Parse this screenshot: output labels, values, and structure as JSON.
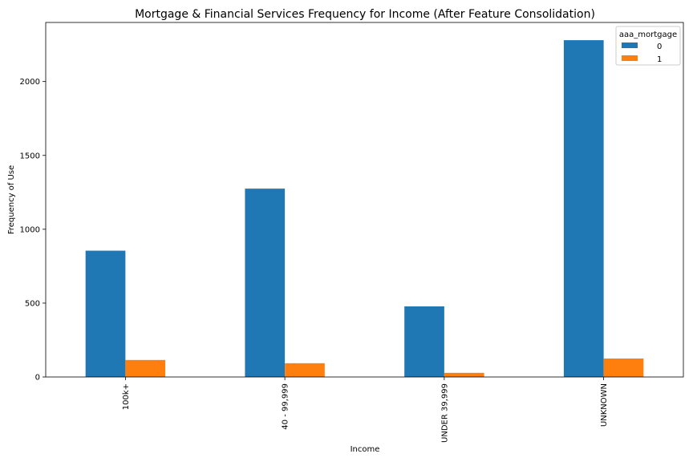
{
  "chart_data": {
    "type": "bar",
    "title": "Mortgage & Financial Services Frequency for Income (After Feature Consolidation)",
    "xlabel": "Income",
    "ylabel": "Frequency of Use",
    "categories": [
      "100k+",
      "40 - 99,999",
      "UNDER 39,999",
      "UNKNOWN"
    ],
    "series": [
      {
        "name": "0",
        "values": [
          855,
          1275,
          478,
          2280
        ],
        "color": "#1f77b4"
      },
      {
        "name": "1",
        "values": [
          115,
          93,
          28,
          125
        ],
        "color": "#ff7f0e"
      }
    ],
    "ylim": [
      0,
      2400
    ],
    "yticks": [
      0,
      500,
      1000,
      1500,
      2000
    ],
    "grid": false,
    "legend": {
      "title": "aaa_mortgage",
      "placement": "top-right"
    }
  }
}
